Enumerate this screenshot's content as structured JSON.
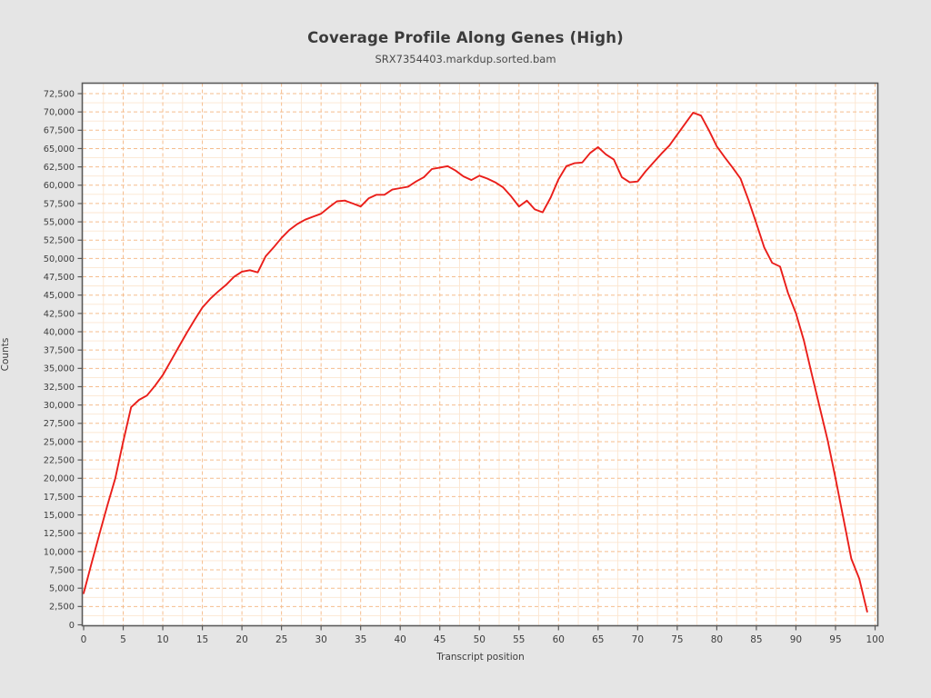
{
  "title": "Coverage Profile Along Genes (High)",
  "subtitle": "SRX7354403.markdup.sorted.bam",
  "colors": {
    "page_background": "#e5e5e5",
    "plot_background": "#ffffff",
    "grid_major": "#f5bd8e",
    "grid_minor": "#fce6d1",
    "frame": "#5a5a5a",
    "tick_text": "#3d3d3d",
    "line": "#ea1e1a"
  },
  "chart_data": {
    "type": "line",
    "title": "Coverage Profile Along Genes (High)",
    "subtitle": "SRX7354403.markdup.sorted.bam",
    "xlabel": "Transcript position",
    "ylabel": "Counts",
    "xlim": [
      0,
      100.4
    ],
    "ylim": [
      0,
      72500
    ],
    "x_tick_interval": 5,
    "y_tick_interval": 2500,
    "x_ticks": [
      0,
      5,
      10,
      15,
      20,
      25,
      30,
      35,
      40,
      45,
      50,
      55,
      60,
      65,
      70,
      75,
      80,
      85,
      90,
      95,
      100
    ],
    "grid": "dashed major every 5 x / 2500 y, faint minor at half-steps",
    "legend_position": "none",
    "series": [
      {
        "name": "SRX7354403.markdup.sorted.bam",
        "color": "#ea1e1a",
        "x_start": 0,
        "x_step": 1,
        "values": [
          4300,
          8400,
          12400,
          16300,
          20000,
          25000,
          29700,
          30700,
          31300,
          32600,
          34100,
          36000,
          37900,
          39800,
          41600,
          43300,
          44500,
          45500,
          46400,
          47500,
          48200,
          48400,
          48100,
          50300,
          51500,
          52800,
          53900,
          54700,
          55300,
          55700,
          56100,
          57000,
          57800,
          57900,
          57500,
          57100,
          58200,
          58700,
          58700,
          59400,
          59600,
          59800,
          60500,
          61100,
          62200,
          62400,
          62600,
          62000,
          61200,
          60700,
          61300,
          60900,
          60400,
          59700,
          58500,
          57100,
          57900,
          56700,
          56300,
          58300,
          60800,
          62600,
          63000,
          63100,
          64400,
          65200,
          64200,
          63500,
          61100,
          60400,
          60500,
          61900,
          63100,
          64300,
          65400,
          66900,
          68400,
          69900,
          69500,
          67500,
          65300,
          63800,
          62400,
          60900,
          58000,
          54800,
          51500,
          49400,
          48900,
          45300,
          42500,
          38800,
          34200,
          29700,
          25200,
          20000,
          14500,
          9000,
          6300,
          1800
        ]
      }
    ]
  }
}
